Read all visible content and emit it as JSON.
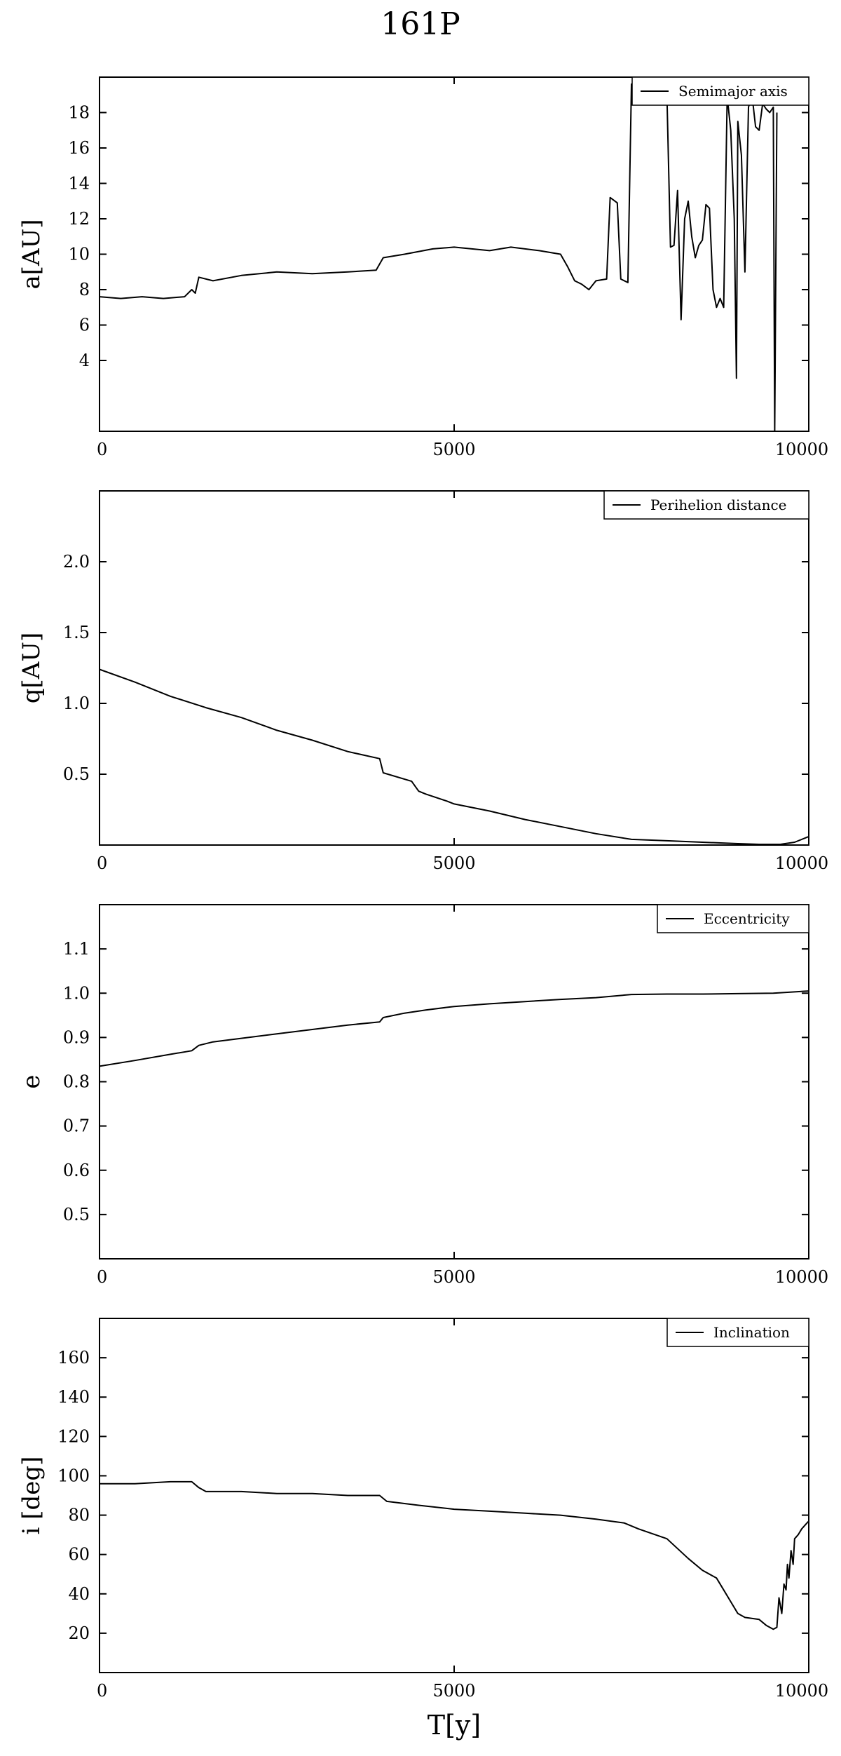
{
  "title": "161P",
  "x_axis_title": "T[y]",
  "chart_data": [
    {
      "type": "line",
      "ylabel": "a[AU]",
      "xlim": [
        0,
        10000
      ],
      "ylim": [
        0,
        20
      ],
      "xticks": [
        0,
        5000,
        10000
      ],
      "yticks": [
        4,
        6,
        8,
        10,
        12,
        14,
        16,
        18
      ],
      "grid": false,
      "legend_position": "top-right",
      "series": [
        {
          "name": "Semimajor axis",
          "x": [
            0,
            300,
            600,
            900,
            1200,
            1300,
            1350,
            1400,
            1600,
            2000,
            2500,
            3000,
            3500,
            3900,
            4000,
            4300,
            4700,
            5000,
            5500,
            5800,
            6200,
            6500,
            6600,
            6700,
            6800,
            6900,
            7000,
            7150,
            7200,
            7300,
            7350,
            7450,
            7500,
            7550,
            8000,
            8050,
            8100,
            8150,
            8200,
            8250,
            8300,
            8350,
            8400,
            8450,
            8500,
            8550,
            8600,
            8650,
            8700,
            8750,
            8800,
            8850,
            8900,
            8950,
            8980,
            9000,
            9050,
            9100,
            9150,
            9200,
            9250,
            9300,
            9350,
            9400,
            9450,
            9500,
            9520,
            9550
          ],
          "y": [
            7.6,
            7.5,
            7.6,
            7.5,
            7.6,
            8.0,
            7.8,
            8.7,
            8.5,
            8.8,
            9.0,
            8.9,
            9.0,
            9.1,
            9.8,
            10.0,
            10.3,
            10.4,
            10.2,
            10.4,
            10.2,
            10.0,
            9.3,
            8.5,
            8.3,
            8.0,
            8.5,
            8.6,
            13.2,
            12.9,
            8.6,
            8.4,
            19.6,
            19.8,
            19.0,
            10.4,
            10.5,
            13.6,
            6.3,
            12.0,
            13.0,
            11.0,
            9.8,
            10.5,
            10.8,
            12.8,
            12.6,
            8.0,
            7.0,
            7.5,
            7.0,
            18.9,
            17.0,
            12.0,
            3.0,
            17.5,
            15.6,
            9.0,
            18.3,
            19.0,
            17.2,
            17.0,
            18.5,
            18.2,
            18.0,
            18.3,
            0.0,
            18.0
          ]
        }
      ]
    },
    {
      "type": "line",
      "ylabel": "q[AU]",
      "xlim": [
        0,
        10000
      ],
      "ylim": [
        0,
        2.5
      ],
      "xticks": [
        0,
        5000,
        10000
      ],
      "yticks": [
        0.5,
        1.0,
        1.5,
        2.0
      ],
      "ytick_labels": [
        "0.5",
        "1.0",
        "1.5",
        "2.0"
      ],
      "grid": false,
      "legend_position": "top-right",
      "series": [
        {
          "name": "Perihelion distance",
          "x": [
            0,
            500,
            1000,
            1500,
            2000,
            2500,
            3000,
            3500,
            3950,
            4000,
            4400,
            4500,
            4600,
            4900,
            5000,
            5500,
            6000,
            6500,
            7000,
            7500,
            8000,
            8500,
            9000,
            9300,
            9600,
            9800,
            10000
          ],
          "y": [
            1.24,
            1.15,
            1.05,
            0.97,
            0.9,
            0.81,
            0.74,
            0.66,
            0.61,
            0.51,
            0.45,
            0.38,
            0.36,
            0.31,
            0.29,
            0.24,
            0.18,
            0.13,
            0.08,
            0.04,
            0.03,
            0.02,
            0.01,
            0.005,
            0.005,
            0.02,
            0.06
          ]
        }
      ]
    },
    {
      "type": "line",
      "ylabel": "e",
      "xlim": [
        0,
        10000
      ],
      "ylim": [
        0.4,
        1.2
      ],
      "xticks": [
        0,
        5000,
        10000
      ],
      "yticks": [
        0.5,
        0.6,
        0.7,
        0.8,
        0.9,
        1.0,
        1.1
      ],
      "ytick_labels": [
        "0.5",
        "0.6",
        "0.7",
        "0.8",
        "0.9",
        "1.0",
        "1.1"
      ],
      "grid": false,
      "legend_position": "top-right",
      "series": [
        {
          "name": "Eccentricity",
          "x": [
            0,
            500,
            1000,
            1300,
            1400,
            1600,
            2000,
            2500,
            3000,
            3500,
            3950,
            4000,
            4300,
            4600,
            5000,
            5500,
            6000,
            6500,
            7000,
            7500,
            8000,
            8500,
            9000,
            9500,
            10000
          ],
          "y": [
            0.835,
            0.848,
            0.862,
            0.87,
            0.882,
            0.89,
            0.898,
            0.908,
            0.918,
            0.928,
            0.935,
            0.945,
            0.955,
            0.962,
            0.97,
            0.976,
            0.981,
            0.986,
            0.99,
            0.997,
            0.998,
            0.998,
            0.999,
            1.0,
            1.005
          ]
        }
      ]
    },
    {
      "type": "line",
      "ylabel": "i [deg]",
      "xlim": [
        0,
        10000
      ],
      "ylim": [
        0,
        180
      ],
      "xticks": [
        0,
        5000,
        10000
      ],
      "yticks": [
        20,
        40,
        60,
        80,
        100,
        120,
        140,
        160
      ],
      "grid": false,
      "legend_position": "top-right",
      "series": [
        {
          "name": "Inclination",
          "x": [
            0,
            500,
            1000,
            1300,
            1400,
            1500,
            2000,
            2500,
            3000,
            3500,
            3950,
            4050,
            4500,
            5000,
            5500,
            6000,
            6500,
            7000,
            7400,
            7600,
            8000,
            8300,
            8500,
            8700,
            8800,
            8900,
            9000,
            9100,
            9300,
            9400,
            9500,
            9550,
            9580,
            9620,
            9650,
            9680,
            9700,
            9720,
            9750,
            9780,
            9800,
            9850,
            9900,
            9950,
            10000
          ],
          "y": [
            96,
            96,
            97,
            97,
            94,
            92,
            92,
            91,
            91,
            90,
            90,
            87,
            85,
            83,
            82,
            81,
            80,
            78,
            76,
            73,
            68,
            58,
            52,
            48,
            42,
            36,
            30,
            28,
            27,
            24,
            22,
            23,
            38,
            30,
            45,
            42,
            55,
            48,
            62,
            55,
            68,
            70,
            73,
            75,
            77
          ]
        }
      ]
    }
  ]
}
